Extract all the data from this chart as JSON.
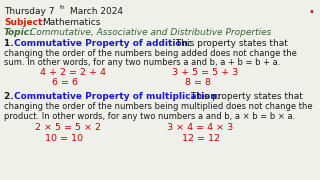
{
  "bg_color": "#f0f0eb",
  "date_text": "Thursday 7",
  "date_super": "th",
  "date_rest": " March 2024",
  "subject_label": "Subject:",
  "subject_value": "Mathematics",
  "topic_label": "Topic:",
  "topic_value": "Commutative, Associative and Distributive Properties",
  "red_dot": "•",
  "s1_num": "1. ",
  "s1_bold": "Commutative Property of addition:",
  "s1_rest": " This property states that",
  "s1_line2": "changing the order of the numbers being added does not change the",
  "s1_line3": "sum. In other words, for any two numbers a and b, a + b = b + a.",
  "ex1a": "4 + 2 = 2 + 4",
  "ex1b": "3 + 5 = 5 + 3",
  "res1a": "6 = 6",
  "res1b": "8 = 8",
  "s2_num": "2. ",
  "s2_bold": "Commutative Property of multiplication:",
  "s2_rest": " This property states that",
  "s2_line2": "changing the order of the numbers being multiplied does not change the",
  "s2_line3": "product. In other words, for any two numbers a and b, a × b = b × a.",
  "ex2a": "2 × 5 = 5 × 2",
  "ex2b": "3 × 4 = 4 × 3",
  "res2a": "10 = 10",
  "res2b": "12 = 12",
  "col_black": "#1a1a1a",
  "col_red": "#cc2200",
  "col_green": "#336633",
  "col_blue": "#1a1acc",
  "col_darkred": "#cc0000"
}
